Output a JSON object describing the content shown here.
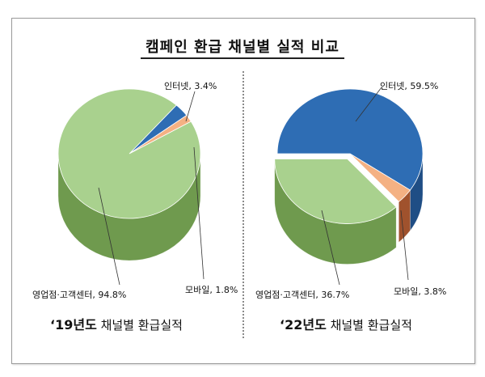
{
  "title": "캠페인 환급 채널별 실적 비교",
  "colors": {
    "internet": "#2e6db4",
    "internet_side": "#1f4e85",
    "mobile": "#f4b183",
    "mobile_side": "#a0522d",
    "offline": "#a9d18e",
    "offline_side": "#6f9a4e"
  },
  "chart_data": [
    {
      "type": "pie",
      "caption_year": "‘19년도",
      "caption_text": "채널별  환급실적",
      "slices": [
        {
          "key": "internet",
          "label": "인터넷, 3.4%",
          "value": 3.4
        },
        {
          "key": "mobile",
          "label": "모바일, 1.8%",
          "value": 1.8
        },
        {
          "key": "offline",
          "label": "영업점·고객센터, 94.8%",
          "value": 94.8
        }
      ]
    },
    {
      "type": "pie",
      "caption_year": "‘22년도",
      "caption_text": "채널별  환급실적",
      "slices": [
        {
          "key": "internet",
          "label": "인터넷, 59.5%",
          "value": 59.5
        },
        {
          "key": "mobile",
          "label": "모바일, 3.8%",
          "value": 3.8
        },
        {
          "key": "offline",
          "label": "영업점·고객센터, 36.7%",
          "value": 36.7
        }
      ]
    }
  ]
}
